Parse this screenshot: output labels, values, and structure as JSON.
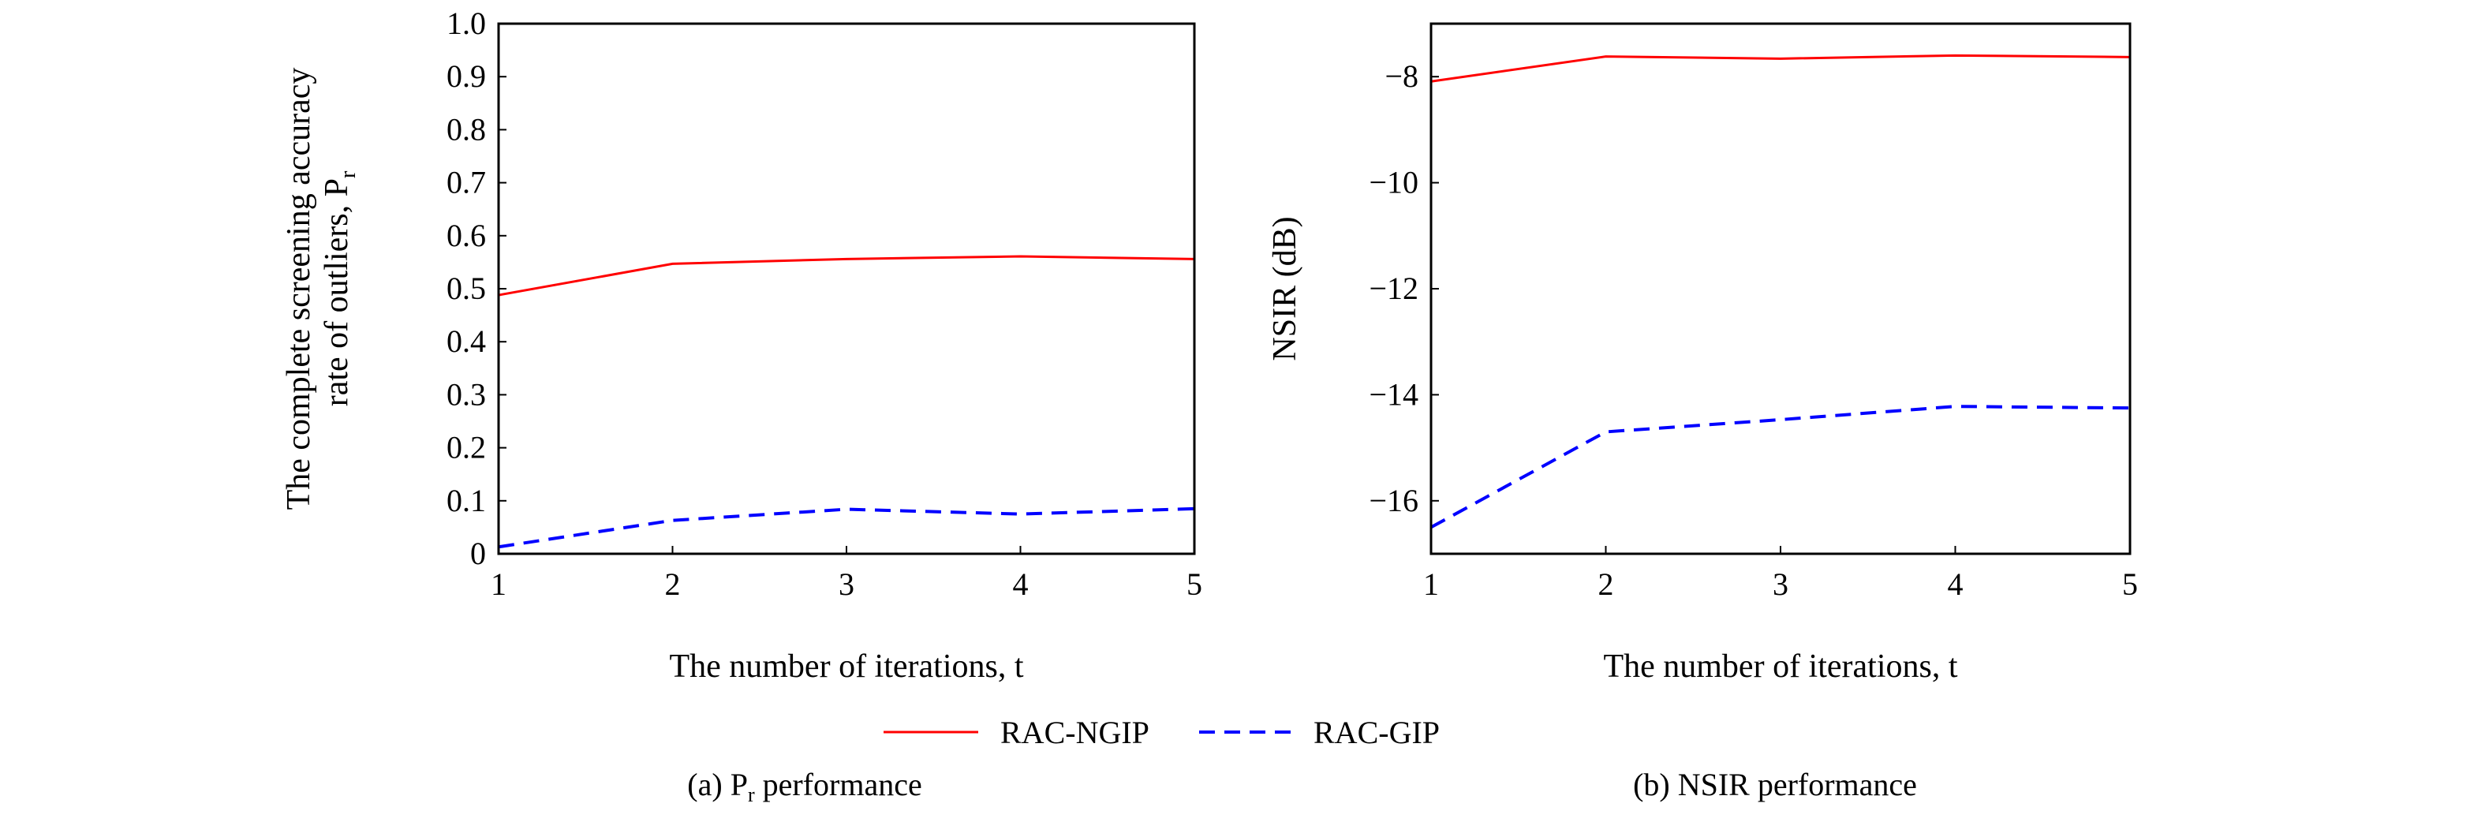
{
  "chart_data": [
    {
      "type": "line",
      "xlabel": "The number of iterations, t",
      "ylabel_line1": "The complete screening accuracy",
      "ylabel_line2": "rate of outliers, P",
      "ylabel_sub": "r",
      "caption": "(a) P",
      "caption_sub": "r",
      "caption_rest": " performance",
      "xlim": [
        1,
        5
      ],
      "ylim": [
        0,
        1.0
      ],
      "x": [
        1,
        2,
        3,
        4,
        5
      ],
      "xticks": [
        "1",
        "2",
        "3",
        "4",
        "5"
      ],
      "yticks": [
        "0",
        "0.1",
        "0.2",
        "0.3",
        "0.4",
        "0.5",
        "0.6",
        "0.7",
        "0.8",
        "0.9",
        "1.0"
      ],
      "ytick_values": [
        0,
        0.1,
        0.2,
        0.3,
        0.4,
        0.5,
        0.6,
        0.7,
        0.8,
        0.9,
        1.0
      ],
      "grid": false,
      "series": [
        {
          "name": "RAC-NGIP",
          "color": "#ff0000",
          "style": "solid",
          "values": [
            0.488,
            0.547,
            0.556,
            0.561,
            0.556
          ]
        },
        {
          "name": "RAC-GIP",
          "color": "#0000ff",
          "style": "dashed",
          "values": [
            0.013,
            0.063,
            0.084,
            0.075,
            0.085
          ]
        }
      ]
    },
    {
      "type": "line",
      "xlabel": "The number of iterations, t",
      "ylabel": "NSIR (dB)",
      "caption": "(b) NSIR performance",
      "xlim": [
        1,
        5
      ],
      "ylim": [
        -17,
        -7
      ],
      "x": [
        1,
        2,
        3,
        4,
        5
      ],
      "xticks": [
        "1",
        "2",
        "3",
        "4",
        "5"
      ],
      "yticks": [
        "−16",
        "−14",
        "−12",
        "−10",
        "−8"
      ],
      "ytick_values": [
        -16,
        -14,
        -12,
        -10,
        -8
      ],
      "grid": false,
      "series": [
        {
          "name": "RAC-NGIP",
          "color": "#ff0000",
          "style": "solid",
          "values": [
            -8.09,
            -7.62,
            -7.66,
            -7.6,
            -7.63
          ]
        },
        {
          "name": "RAC-GIP",
          "color": "#0000ff",
          "style": "dashed",
          "values": [
            -16.5,
            -14.7,
            -14.47,
            -14.22,
            -14.25
          ]
        }
      ]
    }
  ],
  "legend": {
    "placement": "bottom-center",
    "items": [
      {
        "label": "RAC-NGIP",
        "color": "#ff0000",
        "style": "solid"
      },
      {
        "label": "RAC-GIP",
        "color": "#0000ff",
        "style": "dashed"
      }
    ]
  }
}
